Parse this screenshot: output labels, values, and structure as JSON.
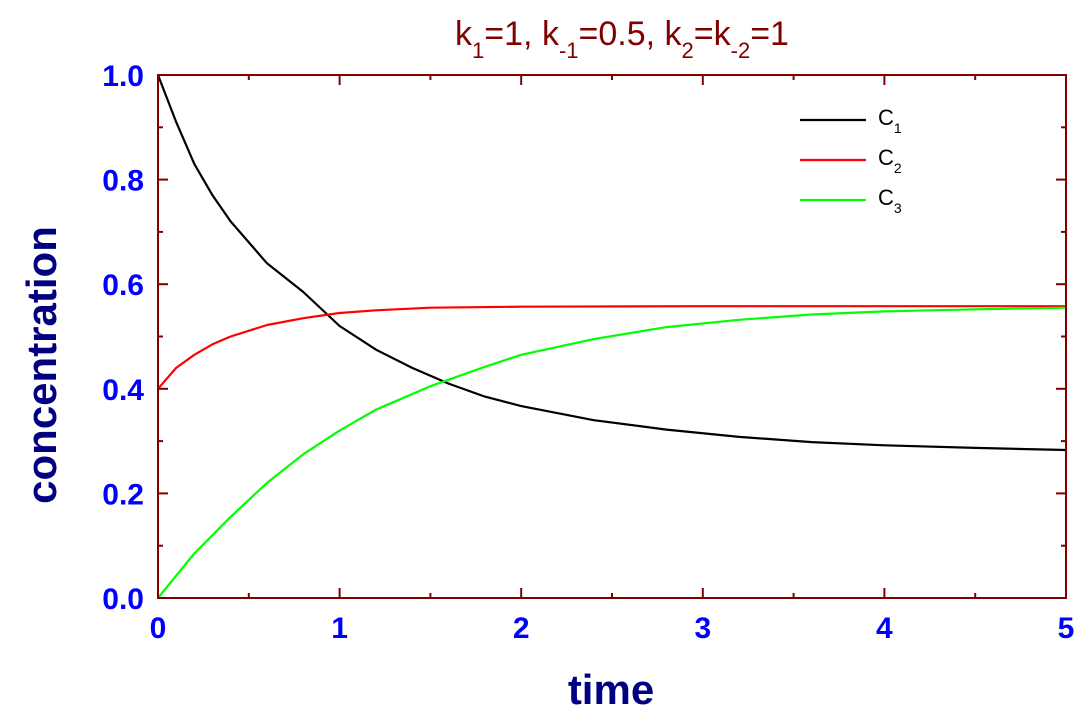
{
  "chart_data": {
    "type": "line",
    "title": {
      "parts": [
        {
          "t": "k",
          "sub": false
        },
        {
          "t": "1",
          "sub": true
        },
        {
          "t": "=1, k",
          "sub": false
        },
        {
          "t": "-1",
          "sub": true
        },
        {
          "t": "=0.5, k",
          "sub": false
        },
        {
          "t": "2",
          "sub": true
        },
        {
          "t": "=k",
          "sub": false
        },
        {
          "t": "-2",
          "sub": true
        },
        {
          "t": "=1",
          "sub": false
        }
      ]
    },
    "xlabel": "time",
    "ylabel": "concentration",
    "xlim": [
      0,
      5
    ],
    "ylim": [
      0,
      1.0
    ],
    "xticks": [
      {
        "v": 0,
        "label": "0"
      },
      {
        "v": 1,
        "label": "1"
      },
      {
        "v": 2,
        "label": "2"
      },
      {
        "v": 3,
        "label": "3"
      },
      {
        "v": 4,
        "label": "4"
      },
      {
        "v": 5,
        "label": "5"
      }
    ],
    "yticks": [
      {
        "v": 0,
        "label": "0.0"
      },
      {
        "v": 0.2,
        "label": "0.2"
      },
      {
        "v": 0.4,
        "label": "0.4"
      },
      {
        "v": 0.6,
        "label": "0.6"
      },
      {
        "v": 0.8,
        "label": "0.8"
      },
      {
        "v": 1.0,
        "label": "1.0"
      }
    ],
    "x_minor_step": 0.5,
    "y_minor_step": 0.1,
    "grid": false,
    "legend_position": "top-right",
    "colors": {
      "axes": "#800000",
      "tick_labels": "#0000ff",
      "axis_titles": "#000080",
      "title": "#800000"
    },
    "series": [
      {
        "name": "C",
        "name_sub": "1",
        "color": "#000000",
        "x": [
          0,
          0.1,
          0.2,
          0.3,
          0.4,
          0.6,
          0.8,
          1.0,
          1.2,
          1.4,
          1.6,
          1.8,
          2.0,
          2.4,
          2.8,
          3.2,
          3.6,
          4.0,
          4.5,
          5.0
        ],
        "y": [
          1.0,
          0.91,
          0.83,
          0.77,
          0.72,
          0.64,
          0.585,
          0.52,
          0.475,
          0.44,
          0.41,
          0.385,
          0.367,
          0.34,
          0.322,
          0.308,
          0.298,
          0.292,
          0.287,
          0.283
        ]
      },
      {
        "name": "C",
        "name_sub": "2",
        "color": "#ff0000",
        "x": [
          0,
          0.1,
          0.2,
          0.3,
          0.4,
          0.6,
          0.8,
          1.0,
          1.2,
          1.5,
          2.0,
          3.0,
          4.0,
          5.0
        ],
        "y": [
          0.4,
          0.44,
          0.465,
          0.485,
          0.5,
          0.522,
          0.535,
          0.545,
          0.55,
          0.555,
          0.557,
          0.558,
          0.558,
          0.558
        ]
      },
      {
        "name": "C",
        "name_sub": "3",
        "color": "#00ff00",
        "x": [
          0,
          0.2,
          0.4,
          0.6,
          0.8,
          1.0,
          1.2,
          1.5,
          1.8,
          2.0,
          2.4,
          2.8,
          3.2,
          3.6,
          4.0,
          4.5,
          5.0
        ],
        "y": [
          0.0,
          0.085,
          0.155,
          0.22,
          0.275,
          0.32,
          0.36,
          0.405,
          0.442,
          0.465,
          0.495,
          0.518,
          0.532,
          0.542,
          0.548,
          0.552,
          0.555
        ]
      }
    ]
  }
}
